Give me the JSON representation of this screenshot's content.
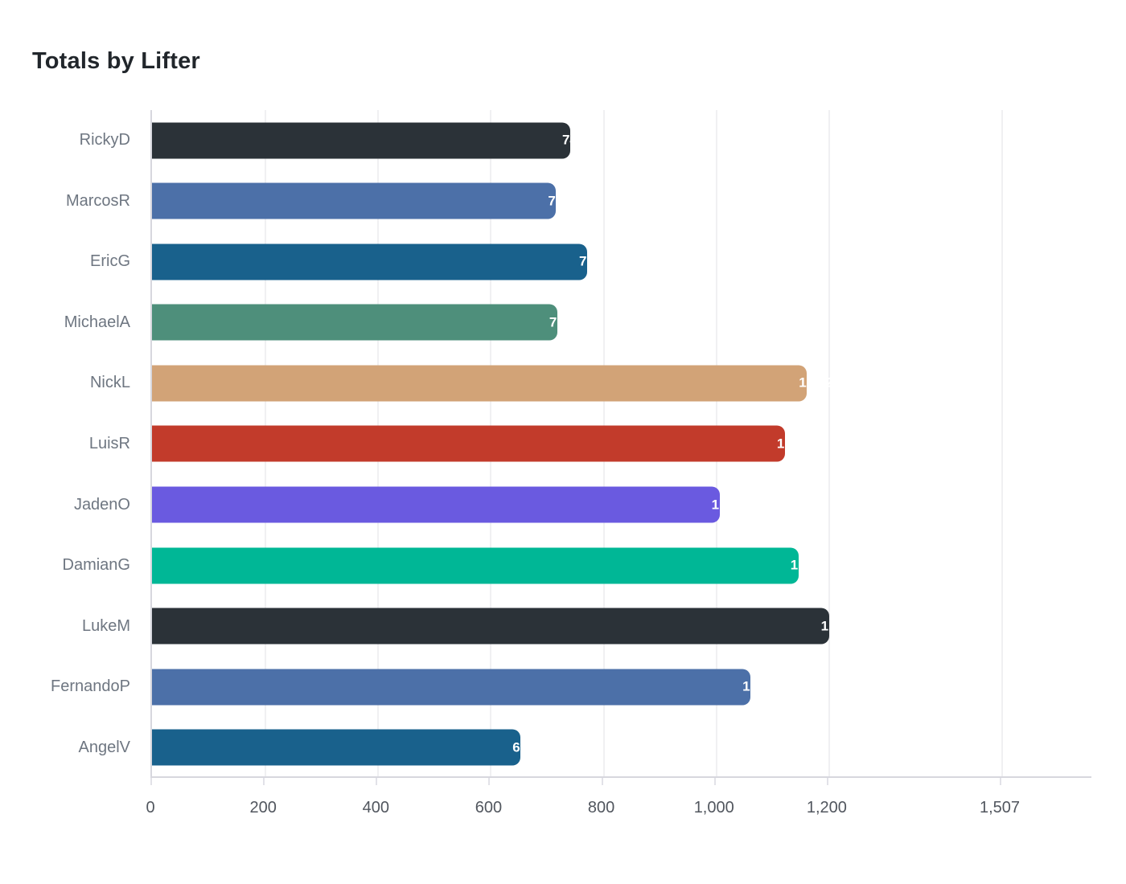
{
  "header": {
    "title": "Totals by Lifter"
  },
  "chart_data": {
    "type": "bar",
    "orientation": "horizontal",
    "title": "Totals by Lifter",
    "categories": [
      "RickyD",
      "MarcosR",
      "EricG",
      "MichaelA",
      "NickL",
      "LuisR",
      "JadenO",
      "DamianG",
      "LukeM",
      "FernandoP",
      "AngelV"
    ],
    "values": [
      742,
      717,
      772,
      719,
      1162,
      1123,
      1007,
      1147,
      1201,
      1062,
      654
    ],
    "value_labels": [
      "742",
      "717",
      "772",
      "719",
      "1,162",
      "1,123",
      "1,007",
      "1,147",
      "1,201",
      "1,062",
      "654"
    ],
    "bar_colors": [
      "#2b3238",
      "#4c70a8",
      "#19618c",
      "#4e8f7b",
      "#d2a377",
      "#c23b2b",
      "#6a5ae0",
      "#00b796",
      "#2b3238",
      "#4c70a8",
      "#19618c"
    ],
    "xlabel": "",
    "ylabel": "",
    "xlim": [
      0,
      1507
    ],
    "x_ticks": [
      {
        "value": 0,
        "label": "0"
      },
      {
        "value": 200,
        "label": "200"
      },
      {
        "value": 400,
        "label": "400"
      },
      {
        "value": 600,
        "label": "600"
      },
      {
        "value": 800,
        "label": "800"
      },
      {
        "value": 1000,
        "label": "1,000"
      },
      {
        "value": 1200,
        "label": "1,200"
      },
      {
        "value": 1507,
        "label": "1,507"
      }
    ],
    "grid": "vertical-light",
    "legend": "none",
    "style_colors": {
      "title_text": "#21262b",
      "category_text": "#6e7681",
      "tick_text": "#51565e",
      "axis_line": "#d7d7de",
      "gridline": "#f0f0f2",
      "value_label_text": "#ffffff",
      "background": "#ffffff"
    }
  }
}
